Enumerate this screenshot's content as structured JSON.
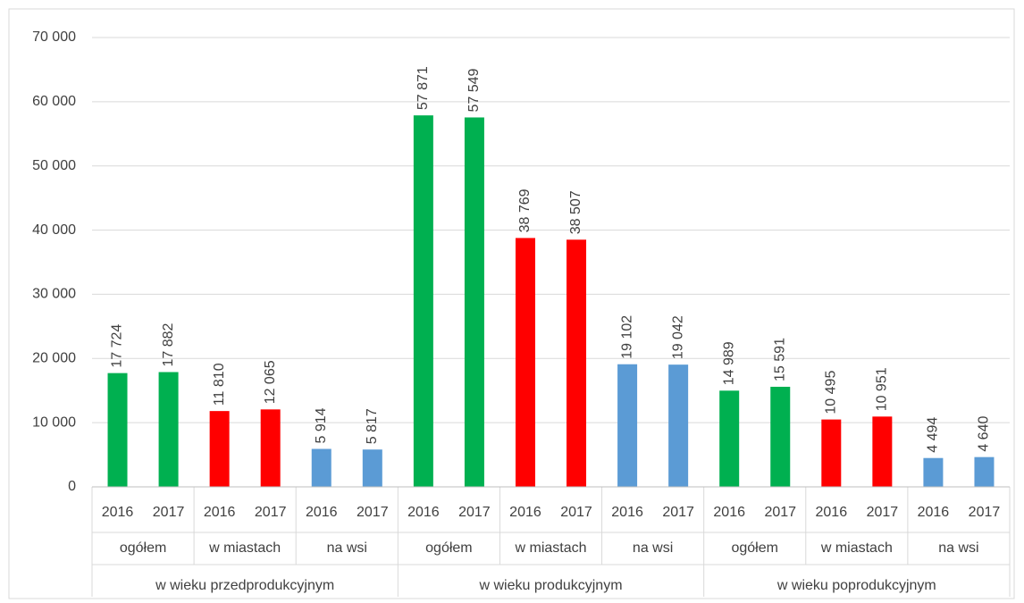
{
  "chart_data": {
    "type": "bar",
    "categories": [
      "2016",
      "2017",
      "2016",
      "2017",
      "2016",
      "2017",
      "2016",
      "2017",
      "2016",
      "2017",
      "2016",
      "2017",
      "2016",
      "2017",
      "2016",
      "2017",
      "2016",
      "2017"
    ],
    "subcategories": [
      "ogółem",
      "w miastach",
      "na wsi",
      "ogółem",
      "w miastach",
      "na wsi",
      "ogółem",
      "w miastach",
      "na wsi"
    ],
    "groups": [
      "w wieku przedprodukcyjnym",
      "w wieku produkcyjnym",
      "w wieku poprodukcyjnym"
    ],
    "values": [
      17724,
      17882,
      11810,
      12065,
      5914,
      5817,
      57871,
      57549,
      38769,
      38507,
      19102,
      19042,
      14989,
      15591,
      10495,
      10951,
      4494,
      4640
    ],
    "value_labels": [
      "17 724",
      "17 882",
      "11 810",
      "12 065",
      "5 914",
      "5 817",
      "57 871",
      "57 549",
      "38 769",
      "38 507",
      "19 102",
      "19 042",
      "14 989",
      "15 591",
      "10 495",
      "10 951",
      "4 494",
      "4 640"
    ],
    "colors": [
      "#00b050",
      "#00b050",
      "#ff0000",
      "#ff0000",
      "#5b9bd5",
      "#5b9bd5",
      "#00b050",
      "#00b050",
      "#ff0000",
      "#ff0000",
      "#5b9bd5",
      "#5b9bd5",
      "#00b050",
      "#00b050",
      "#ff0000",
      "#ff0000",
      "#5b9bd5",
      "#5b9bd5"
    ],
    "ylim": [
      0,
      70000
    ],
    "yticks": [
      0,
      {
        "value": 10000,
        "label": "10 000"
      },
      {
        "value": 20000,
        "label": "20 000"
      },
      {
        "value": 30000,
        "label": "30 000"
      },
      {
        "value": 40000,
        "label": "40 000"
      },
      {
        "value": 50000,
        "label": "50 000"
      },
      {
        "value": 60000,
        "label": "60 000"
      },
      {
        "value": 70000,
        "label": "70 000"
      }
    ],
    "grid": true
  }
}
